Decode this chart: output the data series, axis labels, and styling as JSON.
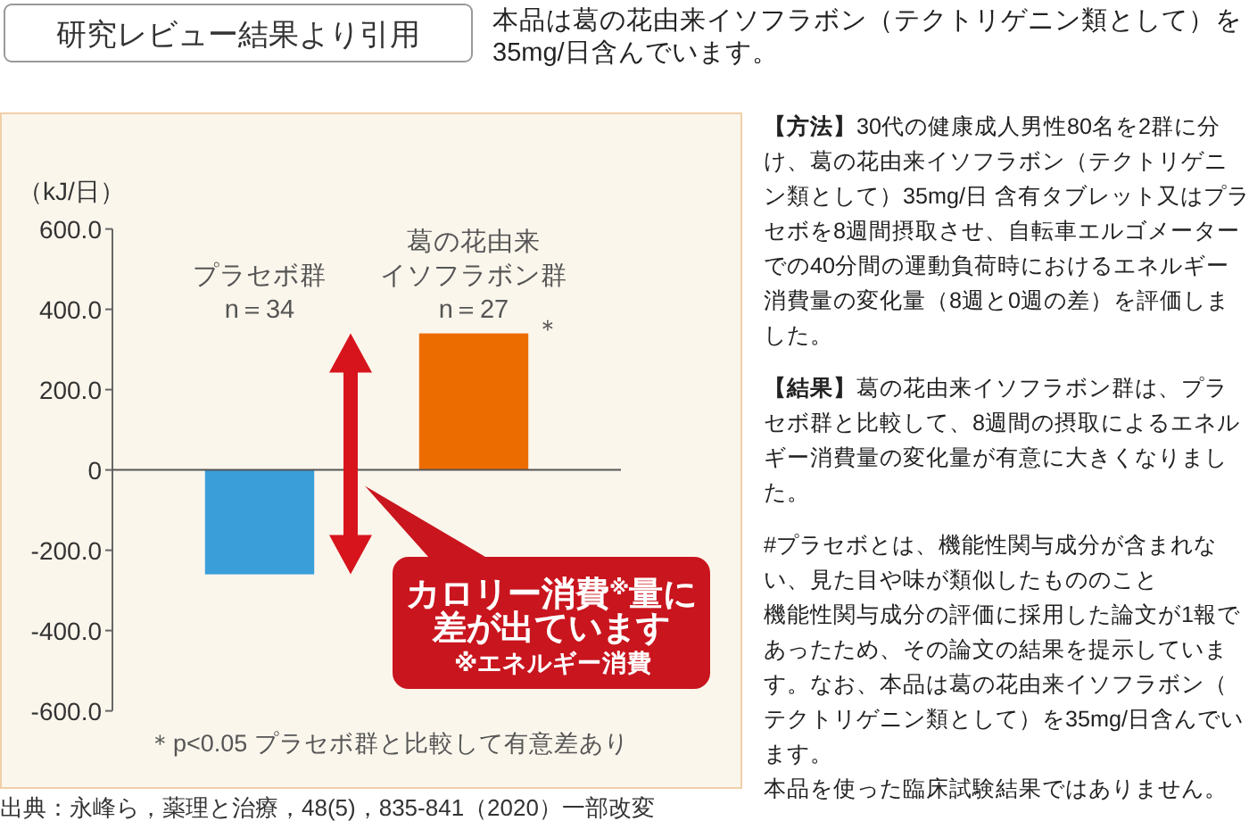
{
  "chart_data": {
    "type": "bar",
    "title": "研究レビュー結果より引用",
    "subtitle": "本品は葛の花由来イソフラボン（テクトリゲニン類として）を35mg/日含んでいます。",
    "ylabel": "（kJ/日）",
    "categories": [
      "プラセボ群\nn＝34",
      "葛の花由来イソフラボン群\nn＝27"
    ],
    "values": [
      -260,
      340
    ],
    "colors": [
      "#3a9fd9",
      "#ec6c00"
    ],
    "ylim": [
      -600,
      600
    ],
    "yticks": [
      {
        "value": -600,
        "label": "-600.0"
      },
      {
        "value": -400,
        "label": "-400.0"
      },
      {
        "value": -200,
        "label": "-200.0"
      },
      0,
      {
        "value": 200,
        "label": "200.0"
      },
      {
        "value": 400,
        "label": "400.0"
      },
      {
        "value": 600,
        "label": "600.0"
      }
    ],
    "annotations": [
      "カロリー消費$^{※}$量に差が出ています",
      "※エネルギー消費",
      "＊p<0.05 プラセボ群と比較して有意差あり",
      "出典：永峰ら，薬理と治療，48(5)，835-841（2020）一部改変",
      "【方法】30代の健康成人男性80名を2群に分け、葛の花由来イソフラボン（テクトリゲニン類として）35mg/日 含有タブレット又はプラセボを8週間摂取させ、自転車エルゴメーターでの40分間の運動負荷時におけるエネルギー消費量の変化量（8週と0週の差）を評価しました。",
      "【結果】葛の花由来イソフラボン群は、プラセボ群と比較して、8週間の摂取によるエネルギー消費量の変化量が有意に大きくなりました。",
      "#プラセボとは、機能性関与成分が含まれない、見た目や味が類似したもののこと",
      "機能性関与成分の評価に採用した論文が1報であったため、その論文の結果を提示しています。なお、本品は葛の花由来イソフラボン（テクトリゲニン類として）を35mg/日含んでいます。",
      "本品を使った臨床試験結果ではありません。",
      {
        "text": "＊",
        "x": "葛の花由来イソフラボン群\nn＝27",
        "y": 340
      }
    ]
  }
}
